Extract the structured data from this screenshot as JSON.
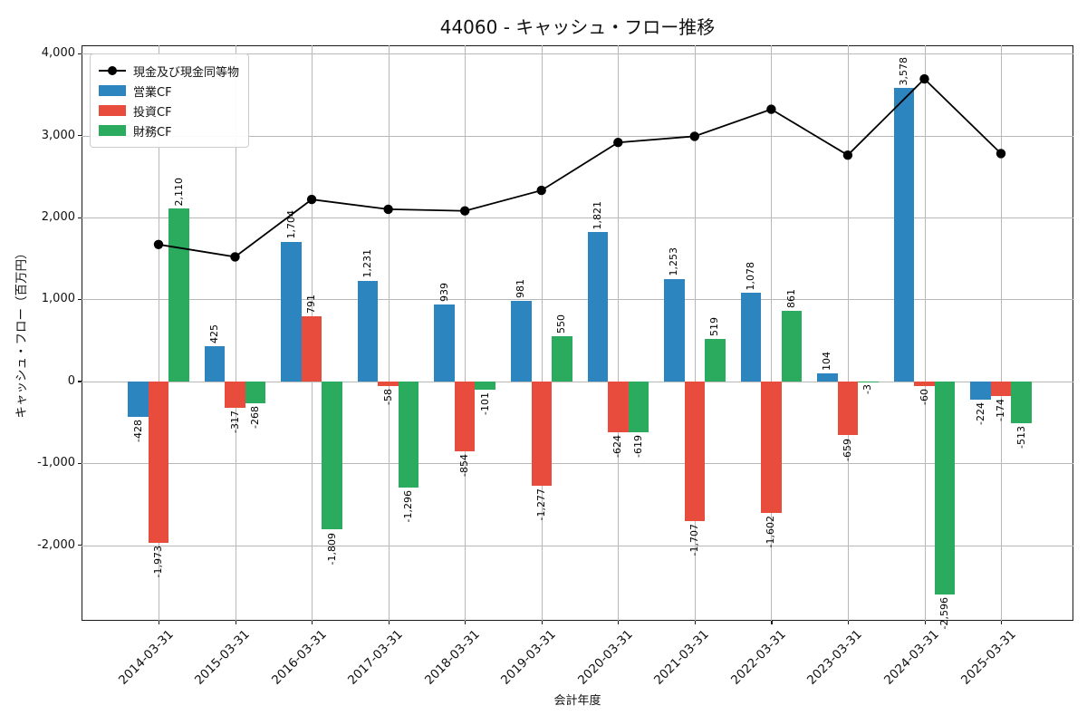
{
  "title": "44060 - キャッシュ・フロー推移",
  "chart_data": {
    "type": "bar",
    "title": "44060 - キャッシュ・フロー推移",
    "xlabel": "会計年度",
    "ylabel": "キャッシュ・フロー（百万円）",
    "categories": [
      "2014-03-31",
      "2015-03-31",
      "2016-03-31",
      "2017-03-31",
      "2018-03-31",
      "2019-03-31",
      "2020-03-31",
      "2021-03-31",
      "2022-03-31",
      "2023-03-31",
      "2024-03-31",
      "2025-03-31"
    ],
    "series": [
      {
        "name": "現金及び現金同等物",
        "type": "line",
        "color": "#000000",
        "values": [
          1670,
          1520,
          2220,
          2100,
          2080,
          2330,
          2915,
          2990,
          3320,
          2760,
          3690,
          2780
        ]
      },
      {
        "name": "営業CF",
        "type": "bar",
        "color": "#2d85c0",
        "values": [
          -428,
          425,
          1704,
          1231,
          939,
          981,
          1821,
          1253,
          1078,
          104,
          3578,
          -224
        ]
      },
      {
        "name": "投資CF",
        "type": "bar",
        "color": "#e74c3c",
        "values": [
          -1973,
          -317,
          791,
          -58,
          -854,
          -1277,
          -624,
          -1707,
          -1602,
          -659,
          -60,
          -174
        ]
      },
      {
        "name": "財務CF",
        "type": "bar",
        "color": "#2aab5e",
        "values": [
          2110,
          -268,
          -1809,
          -1296,
          -101,
          550,
          -619,
          519,
          861,
          -3,
          -2596,
          -513
        ]
      }
    ],
    "bar_value_labels": [
      "-428",
      "-1,973",
      "2,110",
      "425",
      "-317",
      "-268",
      "1,704",
      "791",
      "-1,809",
      "1,231",
      "-58",
      "-1,296",
      "939",
      "-854",
      "-101",
      "981",
      "-1,277",
      "550",
      "1,821",
      "-624",
      "-619",
      "1,253",
      "-1,707",
      "519",
      "1,078",
      "-1,602",
      "861",
      "104",
      "-659",
      "-3",
      "3,578",
      "-60",
      "-2,596",
      "-224",
      "-174",
      "-513"
    ],
    "yticks": [
      4000,
      3000,
      2000,
      1000,
      0,
      -1000,
      -2000
    ],
    "ytick_labels": [
      "4,000",
      "3,000",
      "2,000",
      "1,000",
      "0",
      "-1,000",
      "-2,000"
    ],
    "ylim": [
      -2920,
      4100
    ],
    "grid": true,
    "legend_position": "upper left",
    "grid_color": "#b8b8b8"
  }
}
